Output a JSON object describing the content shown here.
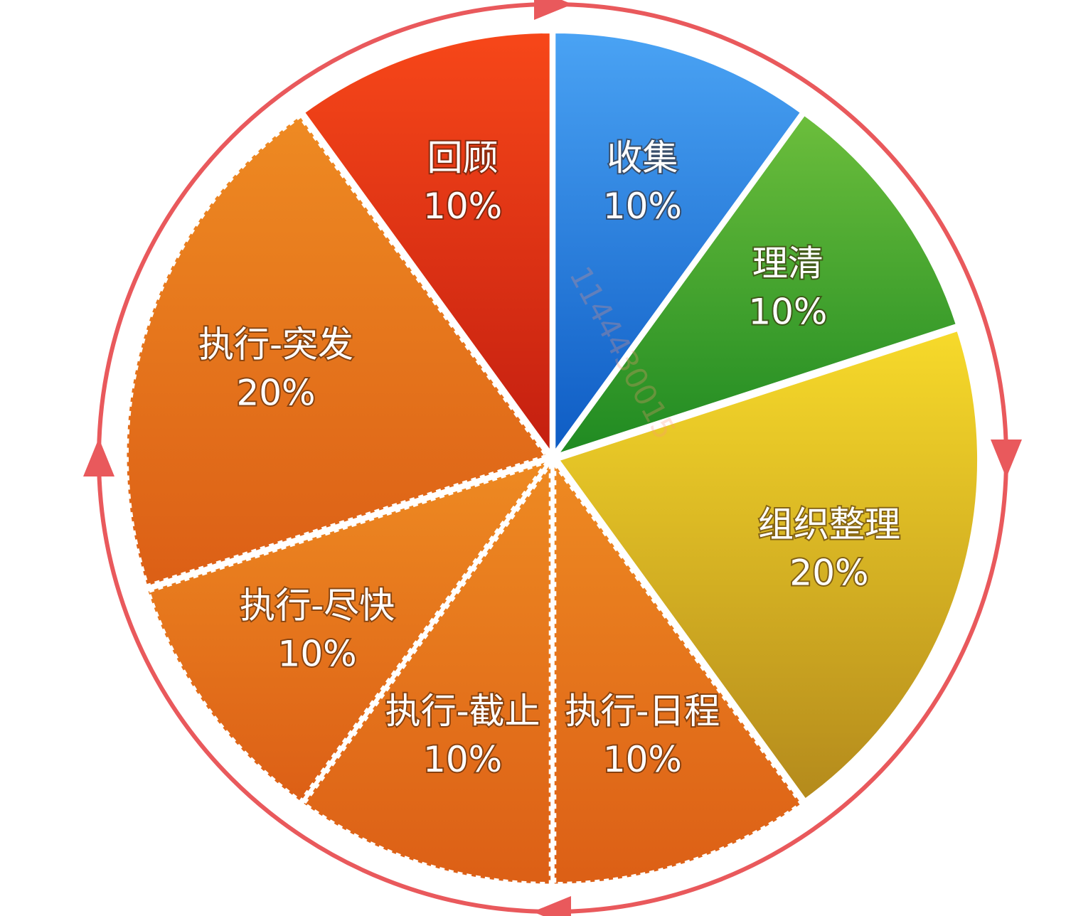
{
  "chart_data": {
    "type": "pie",
    "title": "",
    "slices": [
      {
        "label": "收集",
        "value": 10,
        "value_label": "10%",
        "color_top": "#4aa3f4",
        "color_bottom": "#0e5cc4",
        "dashed": false
      },
      {
        "label": "理清",
        "value": 10,
        "value_label": "10%",
        "color_top": "#6cbe3c",
        "color_bottom": "#1f8a22",
        "dashed": false
      },
      {
        "label": "组织整理",
        "value": 20,
        "value_label": "20%",
        "color_top": "#f7da2a",
        "color_bottom": "#b48a1c",
        "dashed": false
      },
      {
        "label": "执行-日程",
        "value": 10,
        "value_label": "10%",
        "color_top": "#ee8a22",
        "color_bottom": "#dc5f16",
        "dashed": true
      },
      {
        "label": "执行-截止",
        "value": 10,
        "value_label": "10%",
        "color_top": "#ee8a22",
        "color_bottom": "#dc5f16",
        "dashed": true
      },
      {
        "label": "执行-尽快",
        "value": 10,
        "value_label": "10%",
        "color_top": "#ee8a22",
        "color_bottom": "#dc5f16",
        "dashed": true
      },
      {
        "label": "执行-突发",
        "value": 20,
        "value_label": "20%",
        "color_top": "#ee8a22",
        "color_bottom": "#dc5f16",
        "dashed": true
      },
      {
        "label": "回顾",
        "value": 10,
        "value_label": "10%",
        "color_top": "#f74719",
        "color_bottom": "#c41f10",
        "dashed": false
      }
    ],
    "direction": "clockwise",
    "cycle_ring_color": "#e9595c"
  },
  "watermark": "1144430015"
}
